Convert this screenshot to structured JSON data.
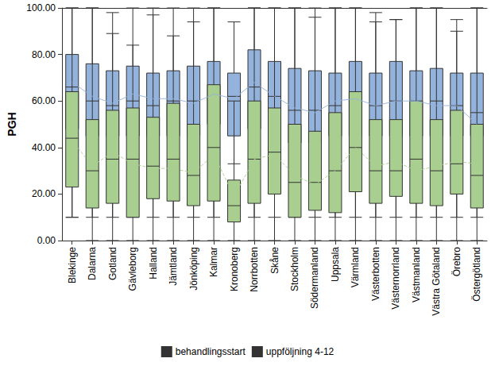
{
  "chart_data": {
    "type": "boxplot",
    "y_label": "PGH",
    "categories": [
      "Blekinge",
      "Dalarna",
      "Gotland",
      "Gävleborg",
      "Halland",
      "Jämtland",
      "Jönköping",
      "Kalmar",
      "Kronoberg",
      "Norrbotten",
      "Skåne",
      "Stockholm",
      "Södermanland",
      "Uppsala",
      "Värmland",
      "Västerbotten",
      "Västernorrland",
      "Västmanland",
      "Västra Götaland",
      "Örebro",
      "Östergötland"
    ],
    "series": [
      {
        "name": "behandlingsstart",
        "color": "#94b3dc",
        "line_style": "solid",
        "values": [
          [
            10,
            48,
            66,
            80,
            100
          ],
          [
            10,
            45,
            60,
            76,
            100
          ],
          [
            10,
            45,
            58,
            73,
            98
          ],
          [
            10,
            45,
            60,
            75,
            100
          ],
          [
            10,
            45,
            58,
            72,
            100
          ],
          [
            10,
            45,
            60,
            73,
            100
          ],
          [
            10,
            45,
            60,
            75,
            100
          ],
          [
            10,
            50,
            64,
            77,
            100
          ],
          [
            33,
            45,
            62,
            72,
            94
          ],
          [
            10,
            48,
            66,
            82,
            100
          ],
          [
            10,
            45,
            62,
            77,
            100
          ],
          [
            10,
            42,
            56,
            74,
            100
          ],
          [
            10,
            42,
            56,
            73,
            100
          ],
          [
            10,
            45,
            58,
            72,
            100
          ],
          [
            10,
            45,
            62,
            77,
            100
          ],
          [
            10,
            45,
            58,
            72,
            98
          ],
          [
            10,
            45,
            60,
            77,
            95
          ],
          [
            10,
            45,
            58,
            73,
            100
          ],
          [
            10,
            45,
            60,
            74,
            100
          ],
          [
            10,
            45,
            58,
            72,
            95
          ],
          [
            10,
            45,
            55,
            72,
            100
          ]
        ],
        "means": [
          68,
          62,
          59,
          63,
          61,
          61,
          59,
          63,
          61,
          68,
          62,
          57,
          55,
          60,
          61,
          58,
          60,
          60,
          58,
          58,
          50
        ]
      },
      {
        "name": "uppföljning 4-12",
        "color": "#a8cf8f",
        "line_style": "dashed",
        "values": [
          [
            10,
            23,
            44,
            64,
            100
          ],
          [
            0,
            14,
            30,
            52,
            100
          ],
          [
            0,
            16,
            35,
            56,
            89
          ],
          [
            0,
            10,
            35,
            57,
            84
          ],
          [
            0,
            18,
            32,
            53,
            97
          ],
          [
            0,
            17,
            35,
            59,
            88
          ],
          [
            0,
            15,
            28,
            50,
            94
          ],
          [
            0,
            17,
            40,
            67,
            100
          ],
          [
            0,
            8,
            15,
            26,
            60
          ],
          [
            0,
            16,
            35,
            60,
            100
          ],
          [
            0,
            20,
            38,
            57,
            100
          ],
          [
            0,
            10,
            25,
            50,
            100
          ],
          [
            0,
            13,
            25,
            47,
            96
          ],
          [
            0,
            12,
            30,
            55,
            100
          ],
          [
            0,
            21,
            40,
            64,
            100
          ],
          [
            0,
            16,
            30,
            52,
            94
          ],
          [
            0,
            19,
            30,
            52,
            95
          ],
          [
            0,
            16,
            35,
            60,
            100
          ],
          [
            0,
            15,
            30,
            52,
            100
          ],
          [
            0,
            20,
            33,
            56,
            90
          ],
          [
            0,
            14,
            28,
            50,
            100
          ]
        ],
        "means": [
          43,
          32,
          38,
          33,
          31,
          31,
          29,
          37,
          19,
          35,
          37,
          28,
          24,
          30,
          40,
          32,
          34,
          30,
          32,
          34,
          33
        ]
      }
    ],
    "ylim": [
      0,
      100
    ],
    "yticks": [
      {
        "value": 0,
        "label": "0.00"
      },
      {
        "value": 20,
        "label": "20.00"
      },
      {
        "value": 40,
        "label": "40.00"
      },
      {
        "value": 60,
        "label": "60.00"
      },
      {
        "value": 80,
        "label": "80.00"
      },
      {
        "value": 100,
        "label": "100.00"
      }
    ],
    "grid": false,
    "legend": "bottom"
  }
}
